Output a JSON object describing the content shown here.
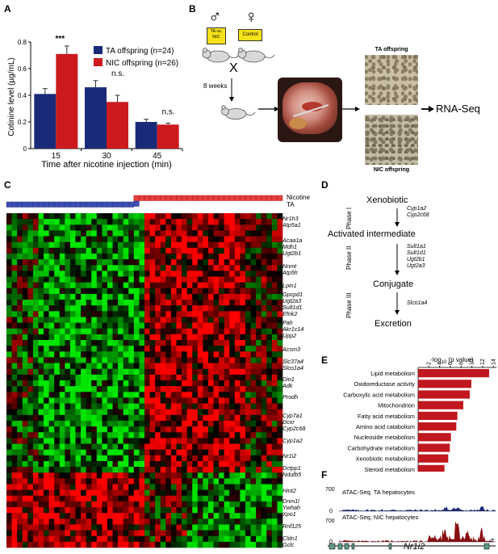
{
  "panels": {
    "A": "A",
    "B": "B",
    "C": "C",
    "D": "D",
    "E": "E",
    "F": "F"
  },
  "chart_data": [
    {
      "type": "bar",
      "panel": "A",
      "categories": [
        "15",
        "30",
        "45"
      ],
      "series": [
        {
          "name": "TA offspring (n=24)",
          "color": "#1b2a78",
          "values": [
            0.41,
            0.46,
            0.2
          ],
          "errors": [
            0.04,
            0.05,
            0.02
          ]
        },
        {
          "name": "NIC offspring (n=26)",
          "color": "#cc1a1f",
          "values": [
            0.71,
            0.35,
            0.18
          ],
          "errors": [
            0.06,
            0.05,
            0.01
          ]
        }
      ],
      "annotations": [
        "***",
        "n.s.",
        "n.s."
      ],
      "xlabel": "Time after nicotine injection (min)",
      "ylabel": "Cotinine level (µg/mL)",
      "ylim": [
        0,
        0.8
      ],
      "yticks": [
        "0",
        "0.2",
        "0.4",
        "0.6",
        "0.8"
      ],
      "legend_placement": "top-right"
    },
    {
      "type": "bar",
      "orientation": "horizontal",
      "panel": "E",
      "categories": [
        "Lipid metabolism",
        "Oxidoreductase activity",
        "Carboxylic acid metabolism",
        "Mitochondrion",
        "Fatty acid metabolism",
        "Amino acid catabolism",
        "Nucleoside metabolism",
        "Carbohydrate metabolism",
        "Xenobiotic metabolism",
        "Steroid metabolism"
      ],
      "values": [
        13.2,
        9.9,
        9.6,
        8.4,
        7.3,
        7.1,
        6.1,
        5.9,
        5.6,
        4.9
      ],
      "color": "#c0181e",
      "xlabel_prefix": "-log",
      "xlabel_sub": "10",
      "xlabel_suffix": " (p value)",
      "xlim": [
        0,
        15
      ],
      "xticks": [
        "2",
        "4",
        "6",
        "8",
        "10",
        "12",
        "14"
      ]
    }
  ],
  "panelB": {
    "male_symbol": "♂",
    "female_symbol": "♀",
    "male_label_line1": "TA vs.",
    "male_label_line2": "NIC",
    "female_label": "Control",
    "cross": "X",
    "weeks": "8 weeks",
    "ta_title": "TA offspring",
    "nic_title": "NIC offspring",
    "rnaseq": "RNA-Seq"
  },
  "panelC": {
    "legend_nicotine": "Nicotine",
    "legend_ta": "TA",
    "genes": [
      "Nr1h3",
      "Atp5a1",
      "Acaa1a",
      "Mdh1",
      "Ugt2b1",
      "Nnmt",
      "Atp5h",
      "Lpin1",
      "Gpcpd1",
      "Ugt2a3",
      "Sult1d1",
      "Efnk2",
      "Pah",
      "Akr1c14",
      "Upp2",
      "Acsm3",
      "Slc37a4",
      "Slco1a4",
      "Dio1",
      "Adk",
      "Prodh",
      "Cyp7a1",
      "Dcxr",
      "Cyp2c68",
      "Cyp1a2",
      "Nr1i2",
      "Dctpp1",
      "Ndufb5",
      "Hint2",
      "Dnm1l",
      "Ywhah",
      "Xpo1",
      "Rnf125",
      "Cldn1",
      "Gclc"
    ]
  },
  "panelD": {
    "xenobiotic": "Xenobiotic",
    "phase1": "Phase I",
    "enz1": [
      "Cyp1a2",
      "Cyp2c68"
    ],
    "activated": "Activated intermediate",
    "phase2": "Phase II",
    "enz2": [
      "Sult1a1",
      "Sult1d1",
      "Ugt2b1",
      "Ugt2a3"
    ],
    "conjugate": "Conjugate",
    "phase3": "Phase III",
    "enz3": [
      "Slco1a4"
    ],
    "excretion": "Excretion"
  },
  "panelF": {
    "track1": "ATAC-Seq, TA hepatocytes",
    "track2": "ATAC-Seq, NIC hepatocytes",
    "ymax1": "700",
    "ymin1": "0",
    "ymax2": "700",
    "ymin2": "0",
    "gene": "Nr1i2",
    "track1_color": "#1b2a78",
    "track2_color": "#8a0f12"
  }
}
